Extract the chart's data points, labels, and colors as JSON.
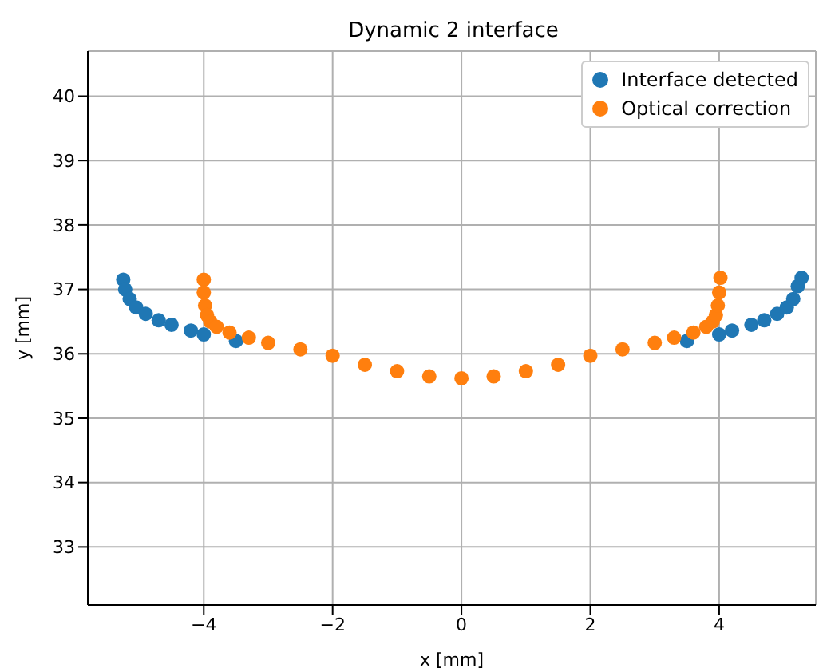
{
  "chart_data": {
    "type": "scatter",
    "title": "Dynamic 2 interface",
    "xlabel": "x [mm]",
    "ylabel": "y [mm]",
    "xlim": [
      -5.8,
      5.5
    ],
    "ylim": [
      32.1,
      40.7
    ],
    "xticks": [
      {
        "value": -4,
        "label": "−4"
      },
      {
        "value": -2,
        "label": "−2"
      },
      0,
      2,
      4
    ],
    "yticks": [
      33,
      34,
      35,
      36,
      37,
      38,
      39,
      40
    ],
    "grid": true,
    "legend": "top right",
    "marker": "circle",
    "series": [
      {
        "name": "Interface detected",
        "color": "#1f77b4",
        "x": [
          -5.25,
          -5.22,
          -5.15,
          -5.05,
          -4.9,
          -4.7,
          -4.5,
          -4.2,
          -4.0,
          -3.5,
          -3.0,
          -2.5,
          -2.0,
          -1.5,
          -1.0,
          -0.5,
          0,
          0.5,
          1.0,
          1.5,
          2.0,
          2.5,
          3.0,
          3.5,
          4.0,
          4.2,
          4.5,
          4.7,
          4.9,
          5.05,
          5.15,
          5.22,
          5.28
        ],
        "values": [
          37.15,
          37.0,
          36.85,
          36.72,
          36.62,
          36.52,
          36.45,
          36.36,
          36.3,
          36.2,
          null,
          null,
          null,
          null,
          null,
          null,
          null,
          null,
          null,
          null,
          null,
          null,
          null,
          36.2,
          36.3,
          36.36,
          36.45,
          36.52,
          36.62,
          36.72,
          36.85,
          37.05,
          37.18
        ]
      },
      {
        "name": "Optical correction",
        "color": "#ff7f0e",
        "x": [
          -4.0,
          -4.0,
          -3.98,
          -3.95,
          -3.9,
          -3.8,
          -3.6,
          -3.3,
          -3.0,
          -2.5,
          -2.0,
          -1.5,
          -1.0,
          -0.5,
          0,
          0.5,
          1.0,
          1.5,
          2.0,
          2.5,
          3.0,
          3.3,
          3.6,
          3.8,
          3.9,
          3.95,
          3.98,
          4.0,
          4.02
        ],
        "values": [
          37.15,
          36.95,
          36.75,
          36.6,
          36.5,
          36.42,
          36.33,
          36.25,
          36.17,
          36.07,
          35.97,
          35.83,
          35.73,
          35.65,
          35.62,
          35.65,
          35.73,
          35.83,
          35.97,
          36.07,
          36.17,
          36.25,
          36.33,
          36.42,
          36.5,
          36.6,
          36.75,
          36.95,
          37.18
        ]
      }
    ]
  }
}
